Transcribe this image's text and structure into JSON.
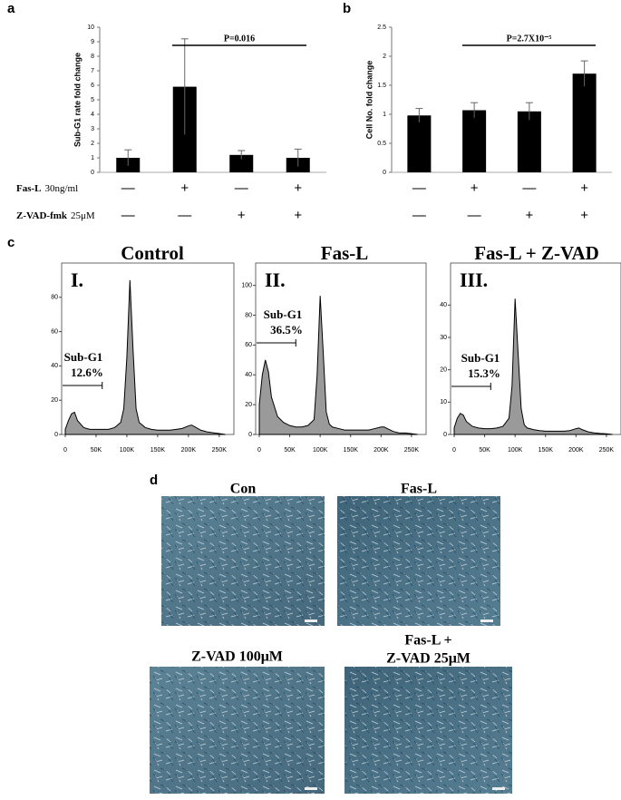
{
  "panel_labels": [
    "a",
    "b",
    "c",
    "d"
  ],
  "treatments": [
    {
      "name": "Fas-L",
      "dose": "30ng/ml",
      "signs": [
        "—",
        "+",
        "—",
        "+"
      ]
    },
    {
      "name": "Z-VAD-fmk",
      "dose": "25μM",
      "signs": [
        "—",
        "—",
        "+",
        "+"
      ]
    }
  ],
  "chart_data": [
    {
      "type": "bar",
      "ylabel": "Sub-G1 rate fold change",
      "values": [
        1,
        5.9,
        1.2,
        1.0
      ],
      "errors": [
        0.55,
        3.3,
        0.3,
        0.6
      ],
      "color": "#000000",
      "ylim": [
        0,
        10
      ],
      "yticks": [
        0,
        1,
        2,
        3,
        4,
        5,
        6,
        7,
        8,
        9,
        10
      ],
      "annotation": "P=0.016"
    },
    {
      "type": "bar",
      "ylabel": "Cell No. fold change",
      "values": [
        0.98,
        1.07,
        1.05,
        1.7
      ],
      "errors": [
        0.12,
        0.13,
        0.15,
        0.22
      ],
      "color": "#000000",
      "ylim": [
        0,
        2.5
      ],
      "yticks": [
        0,
        0.5,
        1,
        1.5,
        2,
        2.5
      ],
      "annotation": "P=2.7X10⁻⁵"
    },
    {
      "type": "area",
      "title": "Control",
      "numeral": "I.",
      "annotation": [
        "Sub-G1",
        "12.6%"
      ],
      "color": "#9a9a9a",
      "x": [
        0,
        5000,
        10000,
        15000,
        20000,
        30000,
        40000,
        50000,
        60000,
        70000,
        80000,
        90000,
        95000,
        100000,
        105000,
        110000,
        115000,
        120000,
        130000,
        140000,
        150000,
        160000,
        170000,
        180000,
        190000,
        200000,
        205000,
        210000,
        220000,
        230000,
        240000,
        250000,
        260000
      ],
      "values": [
        3,
        8,
        12,
        13,
        8,
        4,
        3,
        3,
        3,
        3,
        4,
        7,
        15,
        45,
        90,
        50,
        15,
        7,
        4,
        3,
        2.5,
        2.5,
        2.5,
        3,
        3.5,
        5,
        5.5,
        4.5,
        2.5,
        1.5,
        1,
        0.5,
        0
      ],
      "xlim": [
        0,
        265000
      ],
      "ylim": [
        0,
        100
      ],
      "yticks": [
        0,
        20,
        40,
        60,
        80
      ],
      "xticks": [
        0,
        {
          "value": 50000,
          "label": "50K"
        },
        {
          "value": 100000,
          "label": "100K"
        },
        {
          "value": 150000,
          "label": "150K"
        },
        {
          "value": 200000,
          "label": "200K"
        },
        {
          "value": 250000,
          "label": "250K"
        }
      ]
    },
    {
      "type": "area",
      "title": "Fas-L",
      "numeral": "II.",
      "annotation": [
        "Sub-G1",
        "36.5%"
      ],
      "color": "#9a9a9a",
      "x": [
        0,
        5000,
        10000,
        15000,
        20000,
        30000,
        40000,
        50000,
        60000,
        70000,
        80000,
        90000,
        95000,
        100000,
        105000,
        110000,
        115000,
        120000,
        130000,
        140000,
        150000,
        160000,
        170000,
        180000,
        190000,
        200000,
        205000,
        210000,
        220000,
        230000,
        240000,
        250000,
        260000
      ],
      "values": [
        20,
        40,
        50,
        42,
        25,
        12,
        8,
        6,
        5,
        5,
        6,
        10,
        40,
        93,
        55,
        15,
        7,
        5,
        4,
        3,
        3,
        3,
        3,
        3,
        4,
        5,
        5,
        4,
        2,
        1,
        1,
        0.5,
        0
      ],
      "xlim": [
        0,
        265000
      ],
      "ylim": [
        0,
        115
      ],
      "yticks": [
        0,
        20,
        40,
        60,
        80,
        100
      ],
      "xticks": [
        0,
        {
          "value": 50000,
          "label": "50K"
        },
        {
          "value": 100000,
          "label": "100K"
        },
        {
          "value": 150000,
          "label": "150K"
        },
        {
          "value": 200000,
          "label": "200K"
        },
        {
          "value": 250000,
          "label": "250K"
        }
      ]
    },
    {
      "type": "area",
      "title": "Fas-L + Z-VAD",
      "numeral": "III.",
      "annotation": [
        "Sub-G1",
        "15.3%"
      ],
      "color": "#9a9a9a",
      "x": [
        0,
        5000,
        10000,
        15000,
        20000,
        30000,
        40000,
        50000,
        60000,
        70000,
        80000,
        90000,
        95000,
        100000,
        105000,
        110000,
        115000,
        120000,
        130000,
        140000,
        150000,
        160000,
        170000,
        180000,
        190000,
        200000,
        205000,
        210000,
        220000,
        230000,
        240000,
        250000,
        260000
      ],
      "values": [
        2,
        5,
        6.5,
        6,
        4,
        2.5,
        2,
        1.8,
        1.8,
        2,
        2.5,
        5,
        15,
        42,
        25,
        8,
        3,
        2,
        1.5,
        1.2,
        1,
        1,
        1,
        1,
        1.2,
        1.8,
        2,
        1.5,
        0.8,
        0.5,
        0.3,
        0.2,
        0
      ],
      "xlim": [
        0,
        265000
      ],
      "ylim": [
        0,
        53
      ],
      "yticks": [
        0,
        10,
        20,
        30,
        40
      ],
      "xticks": [
        0,
        {
          "value": 50000,
          "label": "50K"
        },
        {
          "value": 100000,
          "label": "100K"
        },
        {
          "value": 150000,
          "label": "150K"
        },
        {
          "value": 200000,
          "label": "200K"
        },
        {
          "value": 250000,
          "label": "250K"
        }
      ]
    }
  ],
  "micrographs": [
    {
      "label": [
        "Con"
      ]
    },
    {
      "label": [
        "Fas-L"
      ]
    },
    {
      "label": [
        "Z-VAD 100μM"
      ]
    },
    {
      "label": [
        "Fas-L +",
        "Z-VAD 25μM"
      ]
    }
  ]
}
